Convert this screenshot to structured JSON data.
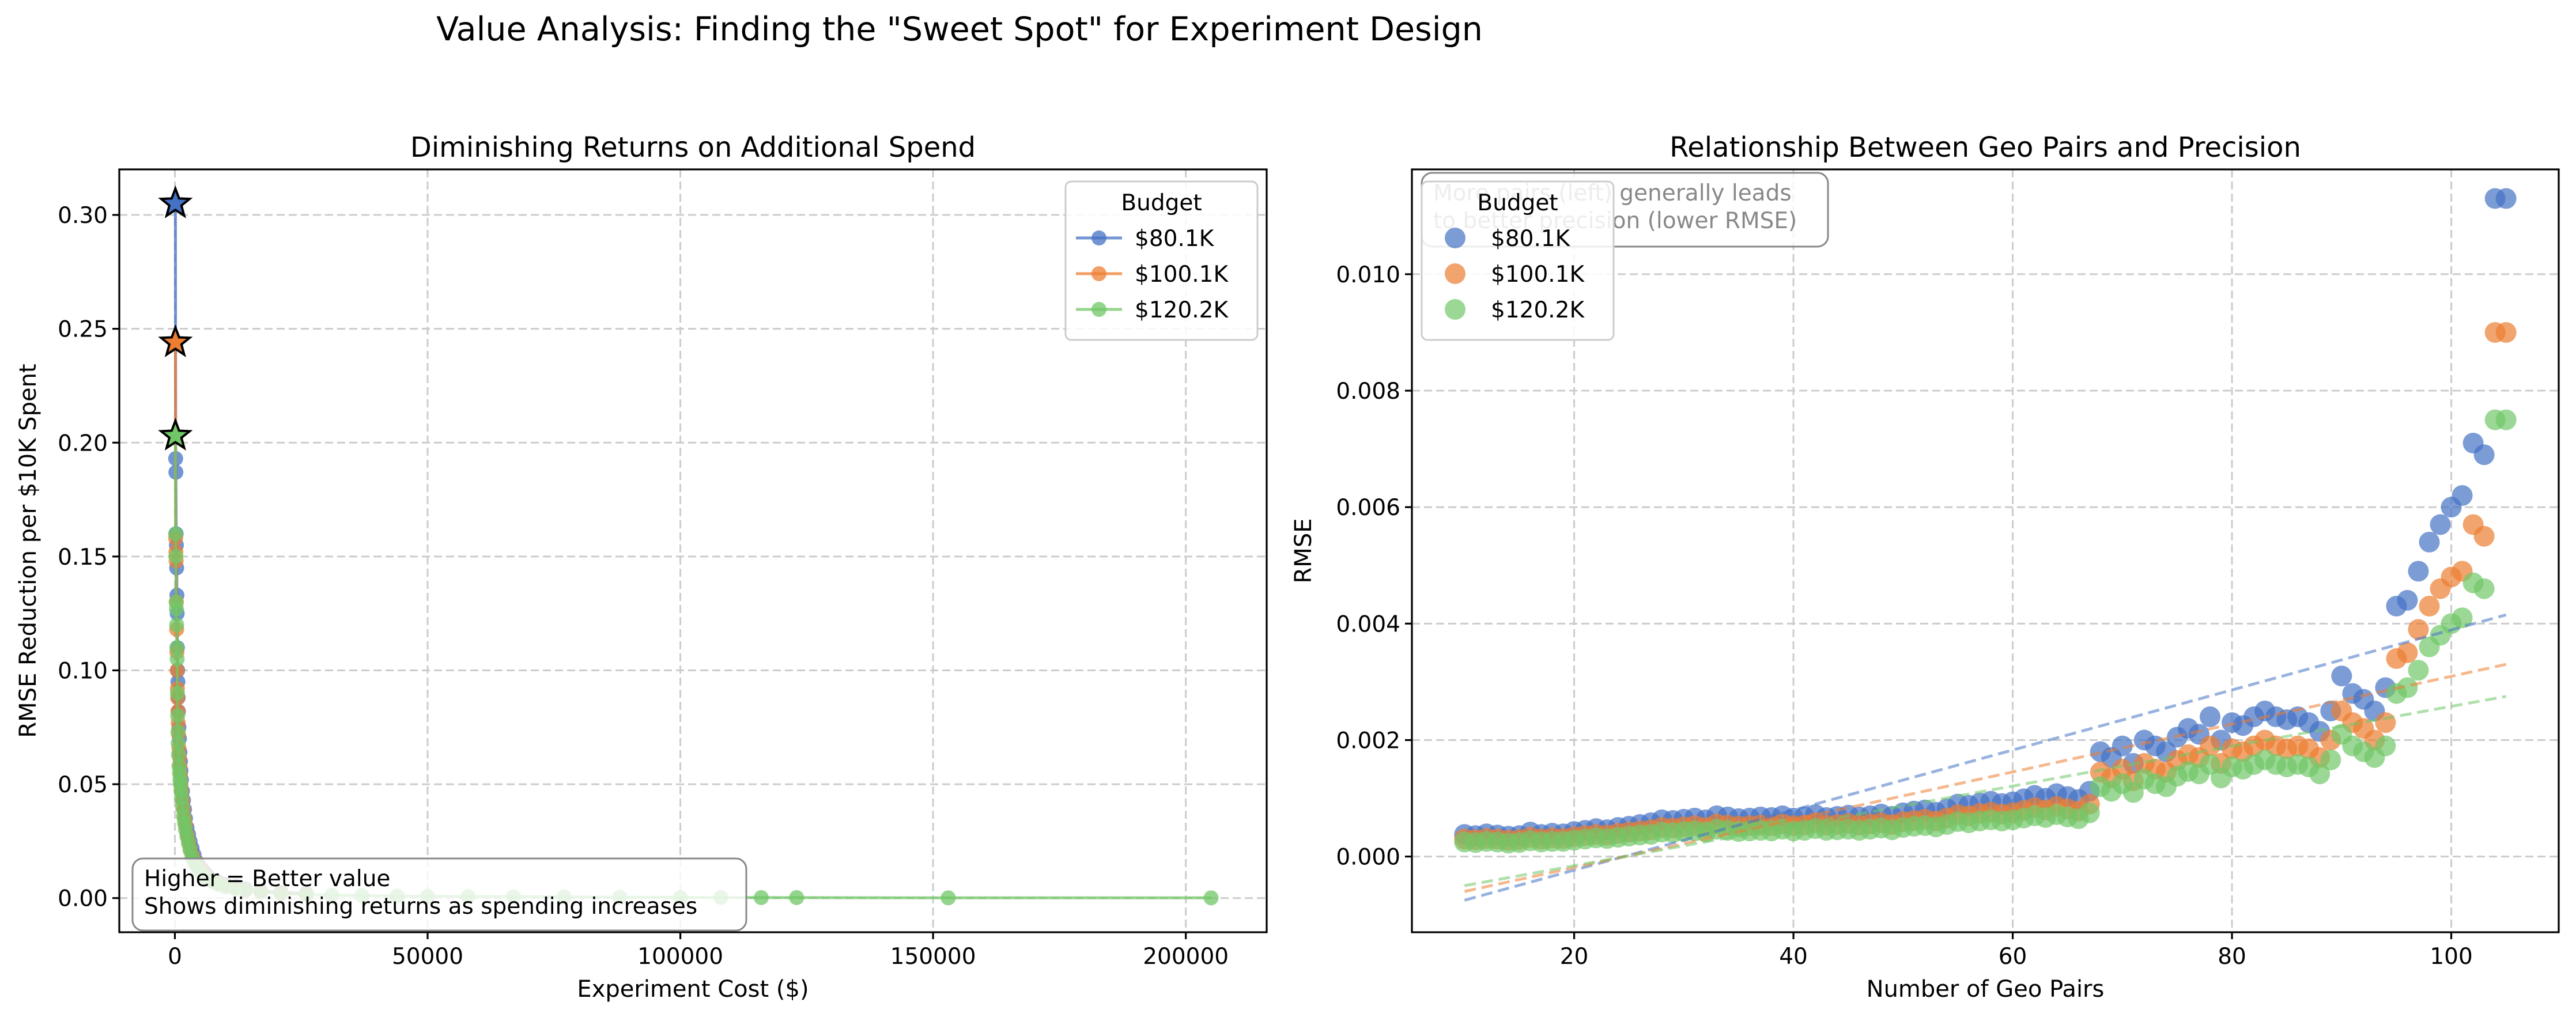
{
  "suptitle": "Value Analysis: Finding the \"Sweet Spot\" for Experiment Design",
  "colors": {
    "80.1K": "#4472c4",
    "100.1K": "#ed7d31",
    "120.2K": "#70c768"
  },
  "chart_data": [
    {
      "type": "line",
      "title": "Diminishing Returns on Additional Spend",
      "xlabel": "Experiment Cost ($)",
      "ylabel": "RMSE Reduction per $10K Spent",
      "xlim": [
        -11000,
        216000
      ],
      "ylim": [
        -0.015,
        0.32
      ],
      "xticks": [
        0,
        50000,
        100000,
        150000,
        200000
      ],
      "xtick_labels": [
        "0",
        "50000",
        "100000",
        "150000",
        "200000"
      ],
      "yticks": [
        0.0,
        0.05,
        0.1,
        0.15,
        0.2,
        0.25,
        0.3
      ],
      "ytick_labels": [
        "0.00",
        "0.05",
        "0.10",
        "0.15",
        "0.20",
        "0.25",
        "0.30"
      ],
      "grid": true,
      "legend": {
        "title": "Budget",
        "placement": "top-right"
      },
      "annotation": "Higher = Better value\nShows diminishing returns as spending increases",
      "series": [
        {
          "name": "$80.1K",
          "color": "#4472c4",
          "x": [
            100,
            150,
            200,
            250,
            300,
            350,
            400,
            450,
            500,
            550,
            600,
            650,
            700,
            800,
            900,
            1000,
            1100,
            1200,
            1300,
            1500,
            1700,
            1900,
            2100,
            2400,
            2700,
            3000,
            3400,
            3800,
            4300,
            4900,
            5600,
            6400,
            7400,
            8600,
            10000,
            12000,
            14000,
            17000,
            21000,
            26000
          ],
          "y": [
            0.305,
            0.193,
            0.187,
            0.16,
            0.155,
            0.145,
            0.133,
            0.125,
            0.11,
            0.1,
            0.095,
            0.088,
            0.082,
            0.075,
            0.07,
            0.064,
            0.06,
            0.056,
            0.052,
            0.047,
            0.043,
            0.039,
            0.035,
            0.031,
            0.028,
            0.025,
            0.022,
            0.019,
            0.016,
            0.014,
            0.012,
            0.01,
            0.008,
            0.007,
            0.006,
            0.005,
            0.004,
            0.003,
            0.0025,
            0.002
          ],
          "star": {
            "x": 100,
            "y": 0.305
          }
        },
        {
          "name": "$100.1K",
          "color": "#ed7d31",
          "x": [
            100,
            150,
            200,
            250,
            300,
            350,
            400,
            450,
            500,
            550,
            600,
            650,
            700,
            800,
            900,
            1000,
            1100,
            1200,
            1300,
            1500,
            1700,
            1900,
            2100,
            2400,
            2700,
            3000,
            3400,
            3800,
            4300,
            4900,
            5600,
            6400,
            7400,
            8600,
            10000,
            12000,
            14000,
            17000,
            21000,
            26000
          ],
          "y": [
            0.244,
            0.158,
            0.152,
            0.148,
            0.13,
            0.118,
            0.108,
            0.1,
            0.092,
            0.088,
            0.082,
            0.077,
            0.072,
            0.066,
            0.062,
            0.058,
            0.054,
            0.05,
            0.047,
            0.043,
            0.039,
            0.035,
            0.032,
            0.028,
            0.025,
            0.022,
            0.019,
            0.017,
            0.015,
            0.013,
            0.011,
            0.009,
            0.0075,
            0.0065,
            0.0055,
            0.0045,
            0.0035,
            0.003,
            0.0022,
            0.0018
          ],
          "star": {
            "x": 100,
            "y": 0.244
          }
        },
        {
          "name": "$120.2K",
          "color": "#70c768",
          "x": [
            100,
            150,
            200,
            250,
            300,
            350,
            400,
            450,
            500,
            550,
            600,
            650,
            700,
            800,
            900,
            1000,
            1100,
            1200,
            1300,
            1500,
            1700,
            1900,
            2100,
            2400,
            2700,
            3000,
            3400,
            3800,
            4300,
            4900,
            5600,
            6400,
            7400,
            8600,
            10000,
            12000,
            14000,
            17000,
            21000,
            26000,
            31000,
            37000,
            44000,
            50000,
            58000,
            67000,
            77000,
            88000,
            100000,
            108000,
            116000,
            123000,
            153000,
            205000
          ],
          "y": [
            0.203,
            0.16,
            0.15,
            0.13,
            0.127,
            0.12,
            0.11,
            0.105,
            0.09,
            0.08,
            0.073,
            0.068,
            0.063,
            0.058,
            0.055,
            0.052,
            0.05,
            0.047,
            0.044,
            0.04,
            0.036,
            0.033,
            0.03,
            0.027,
            0.024,
            0.021,
            0.018,
            0.016,
            0.014,
            0.012,
            0.01,
            0.0085,
            0.0072,
            0.006,
            0.005,
            0.004,
            0.0035,
            0.0028,
            0.002,
            0.0016,
            0.0013,
            0.0011,
            0.0009,
            0.0008,
            0.0007,
            0.0006,
            0.0005,
            0.0004,
            0.0003,
            0.0003,
            0.0002,
            0.0002,
            0.0001,
            0.0001
          ],
          "star": {
            "x": 100,
            "y": 0.203
          }
        }
      ]
    },
    {
      "type": "scatter",
      "title": "Relationship Between Geo Pairs and Precision",
      "xlabel": "Number of Geo Pairs",
      "ylabel": "RMSE",
      "xlim": [
        5.2,
        109.8
      ],
      "ylim": [
        -0.0013,
        0.0118
      ],
      "xticks": [
        20,
        40,
        60,
        80,
        100
      ],
      "xtick_labels": [
        "20",
        "40",
        "60",
        "80",
        "100"
      ],
      "yticks": [
        0.0,
        0.002,
        0.004,
        0.006,
        0.008,
        0.01
      ],
      "ytick_labels": [
        "0.000",
        "0.002",
        "0.004",
        "0.006",
        "0.008",
        "0.010"
      ],
      "grid": true,
      "legend": {
        "title": "Budget",
        "placement": "top-left"
      },
      "annotation": "More pairs (left) generally leads\nto better precision (lower RMSE)",
      "series": [
        {
          "name": "$80.1K",
          "color": "#4472c4",
          "trend": {
            "x": [
              10,
              105
            ],
            "y": [
              -0.00075,
              0.00415
            ]
          },
          "x": [
            10,
            11,
            12,
            13,
            14,
            15,
            16,
            17,
            18,
            19,
            20,
            21,
            22,
            23,
            24,
            25,
            26,
            27,
            28,
            29,
            30,
            31,
            32,
            33,
            34,
            35,
            36,
            37,
            38,
            39,
            40,
            41,
            42,
            43,
            44,
            45,
            46,
            47,
            48,
            49,
            50,
            51,
            52,
            53,
            54,
            55,
            56,
            57,
            58,
            59,
            60,
            61,
            62,
            63,
            64,
            65,
            66,
            67,
            68,
            69,
            70,
            71,
            72,
            73,
            74,
            75,
            76,
            77,
            78,
            79,
            80,
            81,
            82,
            83,
            84,
            85,
            86,
            87,
            88,
            89,
            90,
            91,
            92,
            93,
            94,
            95,
            96,
            97,
            98,
            99,
            100,
            101,
            102,
            103,
            104,
            105
          ],
          "y": [
            0.00038,
            0.00036,
            0.00039,
            0.00037,
            0.00035,
            0.00036,
            0.00042,
            0.00038,
            0.0004,
            0.00039,
            0.00043,
            0.00045,
            0.00048,
            0.00046,
            0.0005,
            0.00052,
            0.00055,
            0.00058,
            0.00063,
            0.00062,
            0.00064,
            0.00066,
            0.00063,
            0.0007,
            0.00068,
            0.00065,
            0.00066,
            0.00068,
            0.00067,
            0.0007,
            0.00066,
            0.00068,
            0.00072,
            0.00067,
            0.00069,
            0.00071,
            0.00068,
            0.0007,
            0.00073,
            0.00069,
            0.00075,
            0.00078,
            0.0008,
            0.00076,
            0.00082,
            0.0009,
            0.00088,
            0.00092,
            0.00095,
            0.00091,
            0.00094,
            0.00099,
            0.00105,
            0.001,
            0.00108,
            0.00103,
            0.00098,
            0.00112,
            0.0018,
            0.0017,
            0.0019,
            0.0016,
            0.002,
            0.0019,
            0.0018,
            0.00205,
            0.0022,
            0.0021,
            0.0024,
            0.002,
            0.0023,
            0.00225,
            0.0024,
            0.0025,
            0.0024,
            0.00235,
            0.0024,
            0.0023,
            0.00215,
            0.0025,
            0.0031,
            0.0028,
            0.0027,
            0.0025,
            0.0029,
            0.0043,
            0.0044,
            0.0049,
            0.0054,
            0.0057,
            0.006,
            0.0062,
            0.0071,
            0.0069,
            0.0113,
            0.0113
          ]
        },
        {
          "name": "$100.1K",
          "color": "#ed7d31",
          "trend": {
            "x": [
              10,
              105
            ],
            "y": [
              -0.0006,
              0.0033
            ]
          },
          "x": [
            10,
            11,
            12,
            13,
            14,
            15,
            16,
            17,
            18,
            19,
            20,
            21,
            22,
            23,
            24,
            25,
            26,
            27,
            28,
            29,
            30,
            31,
            32,
            33,
            34,
            35,
            36,
            37,
            38,
            39,
            40,
            41,
            42,
            43,
            44,
            45,
            46,
            47,
            48,
            49,
            50,
            51,
            52,
            53,
            54,
            55,
            56,
            57,
            58,
            59,
            60,
            61,
            62,
            63,
            64,
            65,
            66,
            67,
            68,
            69,
            70,
            71,
            72,
            73,
            74,
            75,
            76,
            77,
            78,
            79,
            80,
            81,
            82,
            83,
            84,
            85,
            86,
            87,
            88,
            89,
            90,
            91,
            92,
            93,
            94,
            95,
            96,
            97,
            98,
            99,
            100,
            101,
            102,
            103,
            104,
            105
          ],
          "y": [
            0.0003,
            0.00029,
            0.00031,
            0.0003,
            0.00028,
            0.00029,
            0.00033,
            0.0003,
            0.00032,
            0.00031,
            0.00034,
            0.00036,
            0.00038,
            0.00037,
            0.0004,
            0.00042,
            0.00044,
            0.00046,
            0.0005,
            0.00049,
            0.00051,
            0.00053,
            0.0005,
            0.00056,
            0.00054,
            0.00052,
            0.00053,
            0.00054,
            0.00053,
            0.00056,
            0.00053,
            0.00054,
            0.00058,
            0.00054,
            0.00055,
            0.00057,
            0.00054,
            0.00056,
            0.00058,
            0.00055,
            0.0006,
            0.00062,
            0.00064,
            0.00061,
            0.00066,
            0.00072,
            0.0007,
            0.00074,
            0.00076,
            0.00073,
            0.00075,
            0.00079,
            0.00084,
            0.0008,
            0.00086,
            0.00082,
            0.00078,
            0.0009,
            0.00145,
            0.00135,
            0.0015,
            0.0013,
            0.0016,
            0.0015,
            0.00145,
            0.00165,
            0.00175,
            0.0017,
            0.0019,
            0.0016,
            0.00185,
            0.0018,
            0.0019,
            0.002,
            0.0019,
            0.00185,
            0.0019,
            0.00185,
            0.0017,
            0.002,
            0.0025,
            0.0023,
            0.0022,
            0.002,
            0.0023,
            0.0034,
            0.0035,
            0.0039,
            0.0043,
            0.0046,
            0.0048,
            0.0049,
            0.0057,
            0.0055,
            0.009,
            0.009
          ]
        },
        {
          "name": "$120.2K",
          "color": "#70c768",
          "trend": {
            "x": [
              10,
              105
            ],
            "y": [
              -0.0005,
              0.00275
            ]
          },
          "x": [
            10,
            11,
            12,
            13,
            14,
            15,
            16,
            17,
            18,
            19,
            20,
            21,
            22,
            23,
            24,
            25,
            26,
            27,
            28,
            29,
            30,
            31,
            32,
            33,
            34,
            35,
            36,
            37,
            38,
            39,
            40,
            41,
            42,
            43,
            44,
            45,
            46,
            47,
            48,
            49,
            50,
            51,
            52,
            53,
            54,
            55,
            56,
            57,
            58,
            59,
            60,
            61,
            62,
            63,
            64,
            65,
            66,
            67,
            68,
            69,
            70,
            71,
            72,
            73,
            74,
            75,
            76,
            77,
            78,
            79,
            80,
            81,
            82,
            83,
            84,
            85,
            86,
            87,
            88,
            89,
            90,
            91,
            92,
            93,
            94,
            95,
            96,
            97,
            98,
            99,
            100,
            101,
            102,
            103,
            104,
            105
          ],
          "y": [
            0.00025,
            0.00024,
            0.00026,
            0.00025,
            0.00023,
            0.00024,
            0.00027,
            0.00025,
            0.00026,
            0.00026,
            0.00028,
            0.0003,
            0.00032,
            0.00031,
            0.00033,
            0.00035,
            0.00037,
            0.00038,
            0.00042,
            0.00041,
            0.00043,
            0.00044,
            0.00042,
            0.00047,
            0.00045,
            0.00043,
            0.00044,
            0.00045,
            0.00044,
            0.00047,
            0.00044,
            0.00045,
            0.00048,
            0.00045,
            0.00046,
            0.00047,
            0.00045,
            0.00047,
            0.00049,
            0.00046,
            0.0005,
            0.00052,
            0.00053,
            0.00051,
            0.00055,
            0.0006,
            0.00058,
            0.00061,
            0.00063,
            0.00061,
            0.00063,
            0.00066,
            0.0007,
            0.00067,
            0.00072,
            0.00068,
            0.00065,
            0.00075,
            0.0012,
            0.00112,
            0.00125,
            0.0011,
            0.00133,
            0.00125,
            0.0012,
            0.00138,
            0.00146,
            0.00142,
            0.00158,
            0.00135,
            0.00154,
            0.0015,
            0.00158,
            0.00166,
            0.00158,
            0.00154,
            0.00158,
            0.00154,
            0.00142,
            0.00166,
            0.0021,
            0.0019,
            0.0018,
            0.0017,
            0.0019,
            0.0028,
            0.0029,
            0.0032,
            0.0036,
            0.0038,
            0.004,
            0.0041,
            0.0047,
            0.0046,
            0.0075,
            0.0075
          ]
        }
      ]
    }
  ]
}
